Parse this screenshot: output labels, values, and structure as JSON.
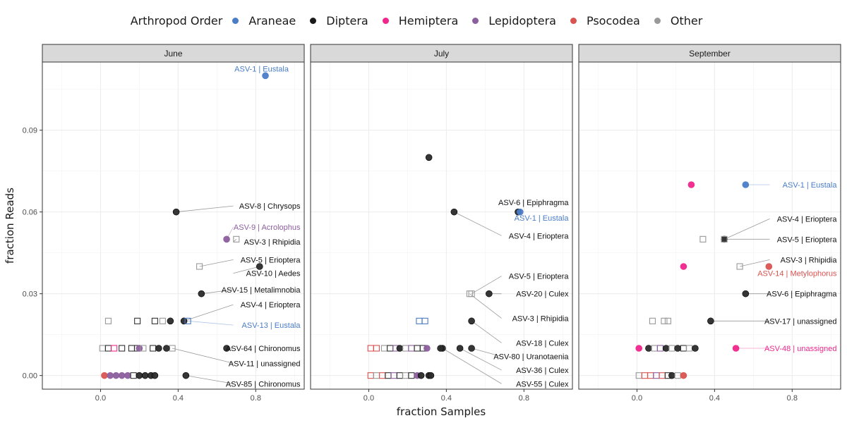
{
  "legend": {
    "title": "Arthropod Order",
    "items": [
      {
        "label": "Araneae",
        "color": "#4a7cc7"
      },
      {
        "label": "Diptera",
        "color": "#1a1a1a"
      },
      {
        "label": "Hemiptera",
        "color": "#f0268c"
      },
      {
        "label": "Lepidoptera",
        "color": "#8b5e9e"
      },
      {
        "label": "Psocodea",
        "color": "#d9534f"
      },
      {
        "label": "Other",
        "color": "#999999"
      }
    ]
  },
  "chart_data": {
    "type": "scatter",
    "xlabel": "fraction Samples",
    "ylabel": "fraction Reads",
    "xlim": [
      -0.3,
      1.05
    ],
    "ylim": [
      -0.005,
      0.115
    ],
    "xticks": [
      0.0,
      0.4,
      0.8
    ],
    "xtick_labels": [
      "0.0",
      "0.4",
      "0.8"
    ],
    "yticks": [
      0.0,
      0.03,
      0.06,
      0.09
    ],
    "ytick_labels": [
      "0.00",
      "0.03",
      "0.06",
      "0.09"
    ],
    "grid": true,
    "legend_position": "top",
    "colors": {
      "Araneae": "#4a7cc7",
      "Diptera": "#2b2b2b",
      "Hemiptera": "#f0268c",
      "Lepidoptera": "#8b5e9e",
      "Psocodea": "#d9534f",
      "Other": "#999999",
      "strip": "#d9d9d9"
    },
    "panels": [
      {
        "title": "June",
        "points": [
          {
            "x": 0.85,
            "y": 0.11,
            "order": "Araneae",
            "shape": "circle",
            "label": "ASV-1 | Eustala",
            "lx": 0.97,
            "ly": 0.1125,
            "line": false
          },
          {
            "x": 0.39,
            "y": 0.06,
            "order": "Diptera",
            "shape": "circle",
            "label": "ASV-8 | Chrysops",
            "lx": 1.03,
            "ly": 0.0622,
            "line": true
          },
          {
            "x": 0.65,
            "y": 0.05,
            "order": "Lepidoptera",
            "shape": "circle",
            "label": "ASV-9 | Acrolophus",
            "lx": 1.03,
            "ly": 0.0545,
            "line": true
          },
          {
            "x": 0.7,
            "y": 0.05,
            "order": "Other",
            "shape": "square",
            "label": "ASV-3 | Rhipidia",
            "lx": 1.03,
            "ly": 0.049,
            "line": true
          },
          {
            "x": 0.51,
            "y": 0.04,
            "order": "Other",
            "shape": "square",
            "label": "ASV-5 | Erioptera",
            "lx": 1.03,
            "ly": 0.0425,
            "line": true
          },
          {
            "x": 0.82,
            "y": 0.04,
            "order": "Diptera",
            "shape": "circle",
            "label": "ASV-10 | Aedes",
            "lx": 1.03,
            "ly": 0.0375,
            "line": true
          },
          {
            "x": 0.52,
            "y": 0.03,
            "order": "Diptera",
            "shape": "circle",
            "label": "ASV-15 | Metalimnobia",
            "lx": 1.03,
            "ly": 0.0315,
            "line": true
          },
          {
            "x": 0.43,
            "y": 0.02,
            "order": "Diptera",
            "shape": "circle",
            "label": "ASV-4 | Erioptera",
            "lx": 1.03,
            "ly": 0.026,
            "line": true
          },
          {
            "x": 0.45,
            "y": 0.02,
            "order": "Araneae",
            "shape": "square",
            "label": "ASV-13 | Eustala",
            "lx": 1.03,
            "ly": 0.0185,
            "line": true
          },
          {
            "x": 0.65,
            "y": 0.01,
            "order": "Diptera",
            "shape": "circle",
            "label": "ASV-64 | Chironomus",
            "lx": 1.03,
            "ly": 0.01,
            "line": true
          },
          {
            "x": 0.37,
            "y": 0.01,
            "order": "Other",
            "shape": "square",
            "label": "ASV-11 | unassigned",
            "lx": 1.03,
            "ly": 0.0045,
            "line": true
          },
          {
            "x": 0.44,
            "y": 0.0,
            "order": "Diptera",
            "shape": "circle",
            "label": "ASV-85 | Chironomus",
            "lx": 1.03,
            "ly": -0.003,
            "line": true
          },
          {
            "x": 0.04,
            "y": 0.02,
            "order": "Other",
            "shape": "square"
          },
          {
            "x": 0.19,
            "y": 0.02,
            "order": "Diptera",
            "shape": "square"
          },
          {
            "x": 0.28,
            "y": 0.02,
            "order": "Diptera",
            "shape": "square"
          },
          {
            "x": 0.32,
            "y": 0.02,
            "order": "Other",
            "shape": "square"
          },
          {
            "x": 0.36,
            "y": 0.02,
            "order": "Diptera",
            "shape": "circle"
          },
          {
            "x": 0.01,
            "y": 0.01,
            "order": "Other",
            "shape": "square"
          },
          {
            "x": 0.04,
            "y": 0.01,
            "order": "Diptera",
            "shape": "square"
          },
          {
            "x": 0.07,
            "y": 0.01,
            "order": "Hemiptera",
            "shape": "square"
          },
          {
            "x": 0.11,
            "y": 0.01,
            "order": "Diptera",
            "shape": "square"
          },
          {
            "x": 0.16,
            "y": 0.01,
            "order": "Diptera",
            "shape": "square"
          },
          {
            "x": 0.19,
            "y": 0.01,
            "order": "Diptera",
            "shape": "square"
          },
          {
            "x": 0.2,
            "y": 0.01,
            "order": "Lepidoptera",
            "shape": "circle"
          },
          {
            "x": 0.22,
            "y": 0.01,
            "order": "Other",
            "shape": "square"
          },
          {
            "x": 0.27,
            "y": 0.01,
            "order": "Diptera",
            "shape": "square"
          },
          {
            "x": 0.3,
            "y": 0.01,
            "order": "Diptera",
            "shape": "circle"
          },
          {
            "x": 0.34,
            "y": 0.01,
            "order": "Diptera",
            "shape": "circle"
          },
          {
            "x": 0.02,
            "y": 0.0,
            "order": "Psocodea",
            "shape": "circle"
          },
          {
            "x": 0.05,
            "y": 0.0,
            "order": "Lepidoptera",
            "shape": "circle"
          },
          {
            "x": 0.08,
            "y": 0.0,
            "order": "Lepidoptera",
            "shape": "circle"
          },
          {
            "x": 0.11,
            "y": 0.0,
            "order": "Lepidoptera",
            "shape": "circle"
          },
          {
            "x": 0.14,
            "y": 0.0,
            "order": "Lepidoptera",
            "shape": "circle"
          },
          {
            "x": 0.17,
            "y": 0.0,
            "order": "Diptera",
            "shape": "square"
          },
          {
            "x": 0.2,
            "y": 0.0,
            "order": "Diptera",
            "shape": "circle"
          },
          {
            "x": 0.23,
            "y": 0.0,
            "order": "Diptera",
            "shape": "circle"
          },
          {
            "x": 0.26,
            "y": 0.0,
            "order": "Diptera",
            "shape": "circle"
          },
          {
            "x": 0.28,
            "y": 0.0,
            "order": "Diptera",
            "shape": "circle"
          }
        ]
      },
      {
        "title": "July",
        "points": [
          {
            "x": 0.31,
            "y": 0.08,
            "order": "Diptera",
            "shape": "circle"
          },
          {
            "x": 0.77,
            "y": 0.06,
            "order": "Diptera",
            "shape": "circle",
            "label": "ASV-6 | Epiphragma",
            "lx": 1.03,
            "ly": 0.0635,
            "line": false
          },
          {
            "x": 0.78,
            "y": 0.06,
            "order": "Araneae",
            "shape": "circle",
            "label": "ASV-1 | Eustala",
            "lx": 1.03,
            "ly": 0.0578,
            "line": false
          },
          {
            "x": 0.44,
            "y": 0.06,
            "order": "Diptera",
            "shape": "circle",
            "label": "ASV-4 | Erioptera",
            "lx": 1.03,
            "ly": 0.0513,
            "line": true
          },
          {
            "x": 0.53,
            "y": 0.03,
            "order": "Other",
            "shape": "square",
            "label": "ASV-5 | Erioptera",
            "lx": 1.03,
            "ly": 0.0365,
            "line": true
          },
          {
            "x": 0.62,
            "y": 0.03,
            "order": "Diptera",
            "shape": "circle",
            "label": "ASV-20 | Culex",
            "lx": 1.03,
            "ly": 0.03,
            "line": true
          },
          {
            "x": 0.52,
            "y": 0.03,
            "order": "Other",
            "shape": "square",
            "label": "ASV-3 | Rhipidia",
            "lx": 1.03,
            "ly": 0.021,
            "line": true
          },
          {
            "x": 0.53,
            "y": 0.02,
            "order": "Diptera",
            "shape": "circle",
            "label": "ASV-18 | Culex",
            "lx": 1.03,
            "ly": 0.012,
            "line": true
          },
          {
            "x": 0.53,
            "y": 0.01,
            "order": "Diptera",
            "shape": "circle",
            "label": "ASV-80 | Uranotaenia",
            "lx": 1.03,
            "ly": 0.007,
            "line": true
          },
          {
            "x": 0.47,
            "y": 0.01,
            "order": "Diptera",
            "shape": "circle",
            "label": "ASV-36 | Culex",
            "lx": 1.03,
            "ly": 0.002,
            "line": true
          },
          {
            "x": 0.38,
            "y": 0.01,
            "order": "Diptera",
            "shape": "circle",
            "label": "ASV-55 | Culex",
            "lx": 1.03,
            "ly": -0.003,
            "line": true
          },
          {
            "x": 0.26,
            "y": 0.02,
            "order": "Araneae",
            "shape": "square"
          },
          {
            "x": 0.29,
            "y": 0.02,
            "order": "Araneae",
            "shape": "square"
          },
          {
            "x": 0.01,
            "y": 0.01,
            "order": "Psocodea",
            "shape": "square"
          },
          {
            "x": 0.04,
            "y": 0.01,
            "order": "Psocodea",
            "shape": "square"
          },
          {
            "x": 0.08,
            "y": 0.01,
            "order": "Other",
            "shape": "square"
          },
          {
            "x": 0.11,
            "y": 0.01,
            "order": "Diptera",
            "shape": "square"
          },
          {
            "x": 0.14,
            "y": 0.01,
            "order": "Lepidoptera",
            "shape": "square"
          },
          {
            "x": 0.16,
            "y": 0.01,
            "order": "Diptera",
            "shape": "circle"
          },
          {
            "x": 0.19,
            "y": 0.01,
            "order": "Other",
            "shape": "square"
          },
          {
            "x": 0.22,
            "y": 0.01,
            "order": "Lepidoptera",
            "shape": "square"
          },
          {
            "x": 0.25,
            "y": 0.01,
            "order": "Diptera",
            "shape": "square"
          },
          {
            "x": 0.28,
            "y": 0.01,
            "order": "Diptera",
            "shape": "square"
          },
          {
            "x": 0.3,
            "y": 0.01,
            "order": "Lepidoptera",
            "shape": "circle"
          },
          {
            "x": 0.37,
            "y": 0.01,
            "order": "Diptera",
            "shape": "circle"
          },
          {
            "x": 0.01,
            "y": 0.0,
            "order": "Psocodea",
            "shape": "square"
          },
          {
            "x": 0.04,
            "y": 0.0,
            "order": "Other",
            "shape": "square"
          },
          {
            "x": 0.07,
            "y": 0.0,
            "order": "Psocodea",
            "shape": "square"
          },
          {
            "x": 0.1,
            "y": 0.0,
            "order": "Diptera",
            "shape": "square"
          },
          {
            "x": 0.13,
            "y": 0.0,
            "order": "Lepidoptera",
            "shape": "square"
          },
          {
            "x": 0.16,
            "y": 0.0,
            "order": "Diptera",
            "shape": "square"
          },
          {
            "x": 0.19,
            "y": 0.0,
            "order": "Other",
            "shape": "square"
          },
          {
            "x": 0.22,
            "y": 0.0,
            "order": "Diptera",
            "shape": "square"
          },
          {
            "x": 0.25,
            "y": 0.0,
            "order": "Lepidoptera",
            "shape": "circle"
          },
          {
            "x": 0.27,
            "y": 0.0,
            "order": "Diptera",
            "shape": "circle"
          },
          {
            "x": 0.31,
            "y": 0.0,
            "order": "Diptera",
            "shape": "circle"
          },
          {
            "x": 0.32,
            "y": 0.0,
            "order": "Diptera",
            "shape": "circle"
          }
        ]
      },
      {
        "title": "September",
        "points": [
          {
            "x": 0.56,
            "y": 0.07,
            "order": "Araneae",
            "shape": "circle",
            "label": "ASV-1 | Eustala",
            "lx": 1.03,
            "ly": 0.07,
            "line": true
          },
          {
            "x": 0.28,
            "y": 0.07,
            "order": "Hemiptera",
            "shape": "circle"
          },
          {
            "x": 0.45,
            "y": 0.05,
            "order": "Diptera",
            "shape": "circle",
            "label": "ASV-4 | Erioptera",
            "lx": 1.03,
            "ly": 0.0575,
            "line": true
          },
          {
            "x": 0.45,
            "y": 0.05,
            "order": "Other",
            "shape": "square",
            "label": "ASV-5 | Erioptera",
            "lx": 1.03,
            "ly": 0.05,
            "line": true
          },
          {
            "x": 0.34,
            "y": 0.05,
            "order": "Other",
            "shape": "square"
          },
          {
            "x": 0.53,
            "y": 0.04,
            "order": "Other",
            "shape": "square",
            "label": "ASV-3 | Rhipidia",
            "lx": 1.03,
            "ly": 0.0425,
            "line": true
          },
          {
            "x": 0.68,
            "y": 0.04,
            "order": "Psocodea",
            "shape": "circle",
            "label": "ASV-14 | Metylophorus",
            "lx": 1.03,
            "ly": 0.0375,
            "line": false
          },
          {
            "x": 0.24,
            "y": 0.04,
            "order": "Hemiptera",
            "shape": "circle"
          },
          {
            "x": 0.56,
            "y": 0.03,
            "order": "Diptera",
            "shape": "circle",
            "label": "ASV-6 | Epiphragma",
            "lx": 1.03,
            "ly": 0.03,
            "line": true
          },
          {
            "x": 0.38,
            "y": 0.02,
            "order": "Diptera",
            "shape": "circle",
            "label": "ASV-17 | unassigned",
            "lx": 1.03,
            "ly": 0.02,
            "line": true
          },
          {
            "x": 0.51,
            "y": 0.01,
            "order": "Hemiptera",
            "shape": "circle",
            "label": "ASV-48 | unassigned",
            "lx": 1.03,
            "ly": 0.01,
            "line": true
          },
          {
            "x": 0.08,
            "y": 0.02,
            "order": "Other",
            "shape": "square"
          },
          {
            "x": 0.14,
            "y": 0.02,
            "order": "Other",
            "shape": "square"
          },
          {
            "x": 0.16,
            "y": 0.02,
            "order": "Other",
            "shape": "square"
          },
          {
            "x": 0.01,
            "y": 0.01,
            "order": "Hemiptera",
            "shape": "circle"
          },
          {
            "x": 0.06,
            "y": 0.01,
            "order": "Diptera",
            "shape": "circle"
          },
          {
            "x": 0.09,
            "y": 0.01,
            "order": "Other",
            "shape": "square"
          },
          {
            "x": 0.12,
            "y": 0.01,
            "order": "Lepidoptera",
            "shape": "square"
          },
          {
            "x": 0.15,
            "y": 0.01,
            "order": "Diptera",
            "shape": "circle"
          },
          {
            "x": 0.18,
            "y": 0.01,
            "order": "Other",
            "shape": "square"
          },
          {
            "x": 0.21,
            "y": 0.01,
            "order": "Diptera",
            "shape": "circle"
          },
          {
            "x": 0.24,
            "y": 0.01,
            "order": "Diptera",
            "shape": "square"
          },
          {
            "x": 0.27,
            "y": 0.01,
            "order": "Other",
            "shape": "square"
          },
          {
            "x": 0.3,
            "y": 0.01,
            "order": "Diptera",
            "shape": "circle"
          },
          {
            "x": 0.01,
            "y": 0.0,
            "order": "Other",
            "shape": "square"
          },
          {
            "x": 0.04,
            "y": 0.0,
            "order": "Psocodea",
            "shape": "square"
          },
          {
            "x": 0.07,
            "y": 0.0,
            "order": "Psocodea",
            "shape": "square"
          },
          {
            "x": 0.1,
            "y": 0.0,
            "order": "Lepidoptera",
            "shape": "square"
          },
          {
            "x": 0.13,
            "y": 0.0,
            "order": "Psocodea",
            "shape": "square"
          },
          {
            "x": 0.16,
            "y": 0.0,
            "order": "Diptera",
            "shape": "square"
          },
          {
            "x": 0.18,
            "y": 0.0,
            "order": "Diptera",
            "shape": "circle"
          },
          {
            "x": 0.21,
            "y": 0.0,
            "order": "Other",
            "shape": "square"
          },
          {
            "x": 0.24,
            "y": 0.0,
            "order": "Psocodea",
            "shape": "circle"
          }
        ]
      }
    ]
  }
}
